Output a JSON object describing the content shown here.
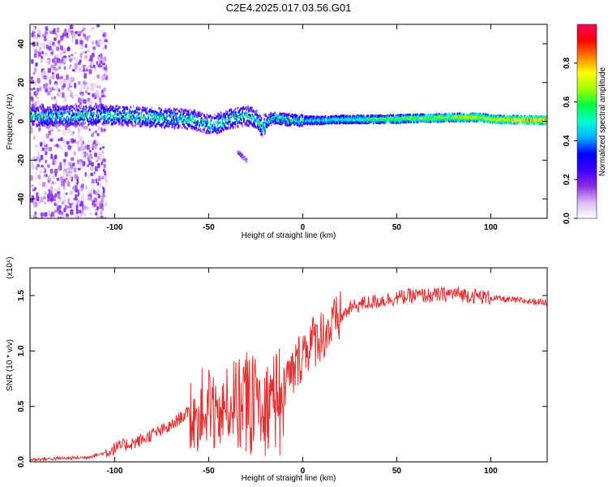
{
  "title": "C2E4.2025.017.03.56.G01",
  "chart_data": [
    {
      "type": "heatmap",
      "title": "C2E4.2025.017.03.56.G01",
      "xlabel": "Height of straight line (km)",
      "ylabel": "Frequency (Hz)",
      "xlim": [
        -145,
        130
      ],
      "ylim": [
        -50,
        50
      ],
      "x_ticks": [
        -100,
        -50,
        0,
        50,
        100
      ],
      "x_tick_labels": [
        "-100",
        "-50",
        "0",
        "50",
        "100"
      ],
      "y_ticks": [
        -40,
        -20,
        0,
        20,
        40
      ],
      "y_tick_labels": [
        "-40",
        "-20",
        "0",
        "20",
        "40"
      ],
      "colorbar": {
        "label": "Normalized spectral amplitude",
        "range": [
          0,
          1
        ],
        "ticks": [
          0.0,
          0.2,
          0.4,
          0.6,
          0.8
        ],
        "tick_labels": [
          "0.0",
          "0.2",
          "0.4",
          "0.6",
          "0.8"
        ],
        "colormap": [
          "#ffffff",
          "#d8b8f0",
          "#8a2be2",
          "#3a00ff",
          "#0000ff",
          "#00b0ff",
          "#00ffd0",
          "#00ff40",
          "#a0ff00",
          "#ffff00",
          "#ff8000",
          "#ff0000",
          "#ff0060"
        ]
      },
      "signal_track": {
        "x": [
          -145,
          -120,
          -100,
          -80,
          -60,
          -55,
          -50,
          -45,
          -40,
          -35,
          -30,
          -25,
          -22,
          -18,
          -15,
          -10,
          -5,
          0,
          10,
          20,
          40,
          60,
          80,
          95,
          100,
          130
        ],
        "y": [
          2.5,
          3,
          3,
          2,
          1,
          0,
          -2,
          -1,
          1,
          2,
          3,
          1,
          -3,
          1,
          2,
          1,
          0.5,
          0.5,
          0.5,
          1,
          1,
          1.5,
          2,
          2,
          1,
          0.5
        ],
        "peak_amplitude": 0.95
      },
      "secondary_feature": {
        "x": [
          -35,
          -30
        ],
        "y": [
          -15,
          -20
        ]
      },
      "noise_region_x": [
        -145,
        -105
      ]
    },
    {
      "type": "line",
      "xlabel": "Height of straight line (km)",
      "ylabel": "SNR (10 * v/v)",
      "scale_label": "(x10⁴)",
      "xlim": [
        -145,
        130
      ],
      "ylim": [
        0,
        1.75
      ],
      "x_ticks": [
        -100,
        -50,
        0,
        50,
        100
      ],
      "x_tick_labels": [
        "-100",
        "-50",
        "0",
        "50",
        "100"
      ],
      "y_ticks": [
        0.0,
        0.5,
        1.0,
        1.5
      ],
      "y_tick_labels": [
        "0.0",
        "0.5",
        "1.0",
        "1.5"
      ],
      "color": "#e03030",
      "series": [
        {
          "x": [
            -145,
            -130,
            -115,
            -105,
            -100,
            -95,
            -90,
            -85,
            -80,
            -75,
            -70,
            -65,
            -60,
            -55,
            -50,
            -45,
            -40,
            -35,
            -30,
            -25,
            -20,
            -15,
            -10,
            -5,
            0,
            5,
            10,
            15,
            20,
            25,
            30,
            40,
            50,
            60,
            70,
            80,
            90,
            100,
            105,
            110,
            120,
            130
          ],
          "values": [
            0.02,
            0.03,
            0.04,
            0.08,
            0.12,
            0.15,
            0.17,
            0.2,
            0.25,
            0.28,
            0.32,
            0.4,
            0.45,
            0.48,
            0.55,
            0.45,
            0.5,
            0.6,
            0.65,
            0.6,
            0.55,
            0.65,
            0.7,
            0.8,
            1.0,
            1.08,
            1.15,
            1.2,
            1.3,
            1.38,
            1.42,
            1.45,
            1.48,
            1.5,
            1.5,
            1.52,
            1.5,
            1.48,
            1.47,
            1.46,
            1.45,
            1.44
          ]
        }
      ]
    }
  ]
}
